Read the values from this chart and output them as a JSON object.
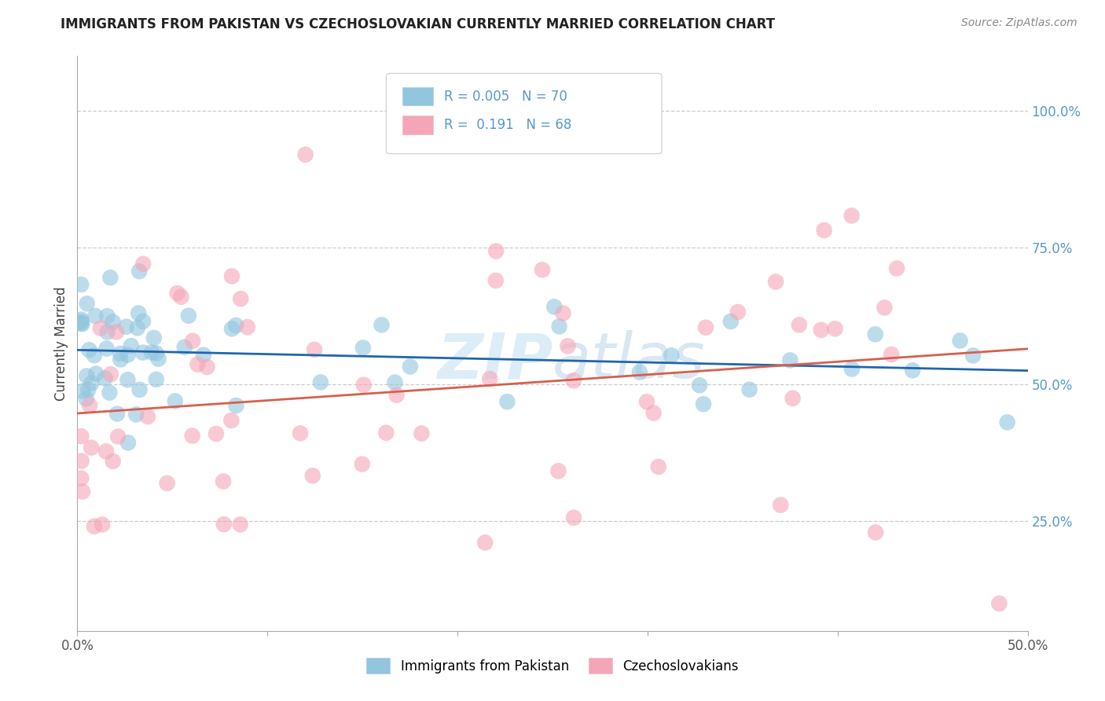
{
  "title": "IMMIGRANTS FROM PAKISTAN VS CZECHOSLOVAKIAN CURRENTLY MARRIED CORRELATION CHART",
  "source": "Source: ZipAtlas.com",
  "ylabel": "Currently Married",
  "ylabel_ticks": [
    "25.0%",
    "50.0%",
    "75.0%",
    "100.0%"
  ],
  "ylabel_tick_vals": [
    0.25,
    0.5,
    0.75,
    1.0
  ],
  "xlim": [
    0.0,
    0.5
  ],
  "ylim": [
    0.05,
    1.1
  ],
  "legend1_label": "Immigrants from Pakistan",
  "legend2_label": "Czechoslovakians",
  "R1": 0.005,
  "N1": 70,
  "R2": 0.191,
  "N2": 68,
  "blue_color": "#92c5de",
  "pink_color": "#f4a6b8",
  "blue_line_color": "#2166ac",
  "pink_line_color": "#d6604d",
  "watermark_zip": "ZIP",
  "watermark_atlas": "atlas",
  "background": "#ffffff",
  "grid_color": "#cccccc",
  "right_tick_color": "#5599cc",
  "seed": 12345
}
